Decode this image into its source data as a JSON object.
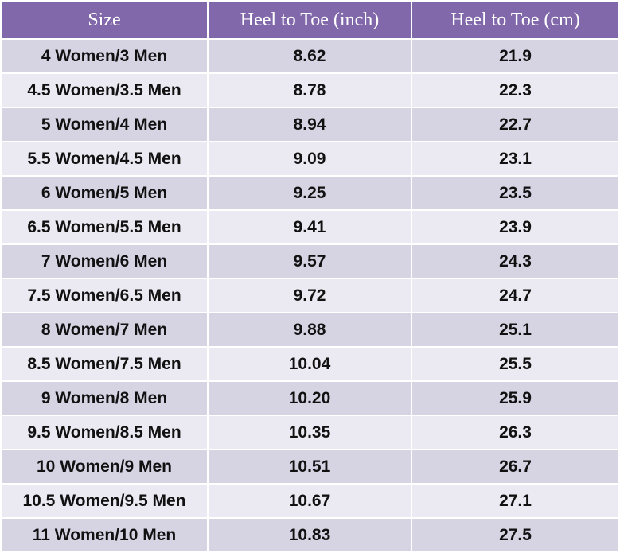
{
  "table": {
    "header": [
      "Size",
      "Heel to Toe (inch)",
      "Heel to Toe (cm)"
    ],
    "rows": [
      [
        "4 Women/3 Men",
        "8.62",
        "21.9"
      ],
      [
        "4.5 Women/3.5 Men",
        "8.78",
        "22.3"
      ],
      [
        "5 Women/4 Men",
        "8.94",
        "22.7"
      ],
      [
        "5.5 Women/4.5 Men",
        "9.09",
        "23.1"
      ],
      [
        "6 Women/5 Men",
        "9.25",
        "23.5"
      ],
      [
        "6.5 Women/5.5 Men",
        "9.41",
        "23.9"
      ],
      [
        "7 Women/6 Men",
        "9.57",
        "24.3"
      ],
      [
        "7.5 Women/6.5 Men",
        "9.72",
        "24.7"
      ],
      [
        "8 Women/7 Men",
        "9.88",
        "25.1"
      ],
      [
        "8.5 Women/7.5 Men",
        "10.04",
        "25.5"
      ],
      [
        "9 Women/8 Men",
        "10.20",
        "25.9"
      ],
      [
        "9.5 Women/8.5 Men",
        "10.35",
        "26.3"
      ],
      [
        "10 Women/9 Men",
        "10.51",
        "26.7"
      ],
      [
        "10.5 Women/9.5 Men",
        "10.67",
        "27.1"
      ],
      [
        "11 Women/10 Men",
        "10.83",
        "27.5"
      ]
    ]
  }
}
